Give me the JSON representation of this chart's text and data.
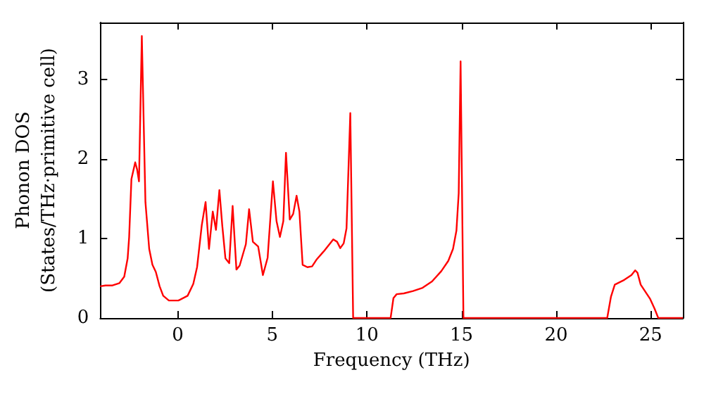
{
  "chart_data": {
    "type": "line",
    "xlabel": "Frequency (THz)",
    "ylabel": "Phonon DOS\n(States/THz·primitive cell)",
    "xlim": [
      -4.1,
      26.7
    ],
    "ylim": [
      0,
      3.72
    ],
    "xticks": [
      0,
      5,
      10,
      15,
      20,
      25
    ],
    "yticks": [
      0,
      1,
      2,
      3
    ],
    "grid": false,
    "marker": "none",
    "line_style": "solid",
    "series": [
      {
        "color": "#ff0000",
        "x": [
          -4.1,
          -3.82,
          -3.45,
          -3.08,
          -2.83,
          -2.65,
          -2.57,
          -2.45,
          -2.25,
          -2.15,
          -2.05,
          -1.9,
          -1.71,
          -1.51,
          -1.34,
          -1.16,
          -0.96,
          -0.77,
          -0.47,
          0.03,
          0.52,
          0.82,
          1.02,
          1.27,
          1.47,
          1.65,
          1.85,
          2.02,
          2.2,
          2.35,
          2.52,
          2.72,
          2.9,
          3.1,
          3.27,
          3.6,
          3.77,
          3.97,
          4.25,
          4.5,
          4.75,
          5.03,
          5.22,
          5.4,
          5.58,
          5.72,
          5.92,
          6.1,
          6.28,
          6.43,
          6.6,
          6.85,
          7.1,
          7.35,
          7.72,
          8.22,
          8.42,
          8.59,
          8.77,
          8.92,
          9.12,
          9.27,
          11.25,
          11.4,
          11.57,
          11.95,
          12.44,
          12.94,
          13.44,
          13.93,
          14.3,
          14.55,
          14.73,
          14.85,
          14.95,
          15.1,
          22.7,
          22.9,
          23.1,
          23.6,
          23.98,
          24.18,
          24.3,
          24.47,
          24.97,
          25.2,
          25.4,
          26.7
        ],
        "values": [
          0.4,
          0.41,
          0.41,
          0.44,
          0.52,
          0.75,
          1.02,
          1.75,
          1.96,
          1.87,
          1.72,
          3.55,
          1.46,
          0.87,
          0.67,
          0.58,
          0.4,
          0.28,
          0.22,
          0.22,
          0.28,
          0.43,
          0.64,
          1.17,
          1.46,
          0.87,
          1.34,
          1.11,
          1.61,
          1.17,
          0.75,
          0.69,
          1.41,
          0.61,
          0.66,
          0.93,
          1.37,
          0.96,
          0.9,
          0.54,
          0.76,
          1.72,
          1.22,
          1.02,
          1.22,
          2.08,
          1.24,
          1.31,
          1.54,
          1.34,
          0.67,
          0.64,
          0.65,
          0.74,
          0.84,
          0.99,
          0.96,
          0.88,
          0.94,
          1.13,
          2.58,
          0,
          0,
          0.25,
          0.3,
          0.31,
          0.34,
          0.38,
          0.46,
          0.59,
          0.72,
          0.87,
          1.1,
          1.57,
          3.23,
          0,
          0,
          0.27,
          0.42,
          0.48,
          0.54,
          0.6,
          0.57,
          0.42,
          0.24,
          0.12,
          0,
          0
        ]
      }
    ]
  }
}
